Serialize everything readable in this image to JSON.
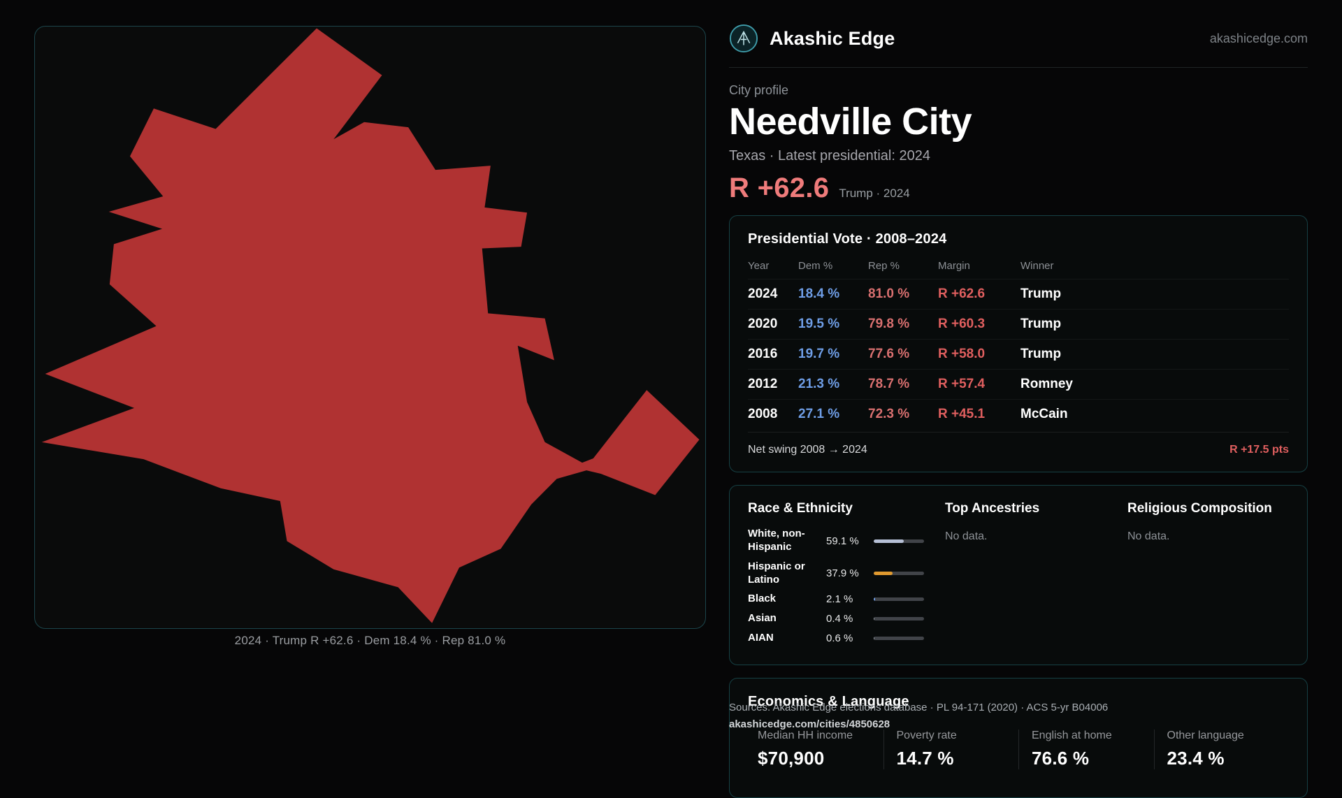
{
  "brand": {
    "name": "Akashic Edge",
    "domain": "akashicedge.com"
  },
  "map": {
    "caption": "2024 · Trump R +62.6 · Dem 18.4 % · Rep 81.0 %"
  },
  "profile": {
    "kicker": "City profile",
    "title": "Needville City",
    "subtitle": "Texas · Latest presidential: 2024",
    "margin_value": "R +62.6",
    "margin_label": "Trump · 2024"
  },
  "vote_table": {
    "title": "Presidential Vote · 2008–2024",
    "columns": [
      "Year",
      "Dem %",
      "Rep %",
      "Margin",
      "Winner"
    ],
    "rows": [
      {
        "year": "2024",
        "dem": "18.4 %",
        "rep": "81.0 %",
        "margin": "R +62.6",
        "winner": "Trump"
      },
      {
        "year": "2020",
        "dem": "19.5 %",
        "rep": "79.8 %",
        "margin": "R +60.3",
        "winner": "Trump"
      },
      {
        "year": "2016",
        "dem": "19.7 %",
        "rep": "77.6 %",
        "margin": "R +58.0",
        "winner": "Trump"
      },
      {
        "year": "2012",
        "dem": "21.3 %",
        "rep": "78.7 %",
        "margin": "R +57.4",
        "winner": "Romney"
      },
      {
        "year": "2008",
        "dem": "27.1 %",
        "rep": "72.3 %",
        "margin": "R +45.1",
        "winner": "McCain"
      }
    ],
    "net_swing_label": "Net swing 2008 → 2024",
    "net_swing_value": "R +17.5 pts"
  },
  "demographics": {
    "race": {
      "title": "Race & Ethnicity",
      "rows": [
        {
          "label": "White, non-Hispanic",
          "value": "59.1 %",
          "pct": 59.1,
          "color": "#b6c0d6"
        },
        {
          "label": "Hispanic or Latino",
          "value": "37.9 %",
          "pct": 37.9,
          "color": "#e09a2f"
        },
        {
          "label": "Black",
          "value": "2.1 %",
          "pct": 2.1,
          "color": "#6f9ee6"
        },
        {
          "label": "Asian",
          "value": "0.4 %",
          "pct": 0.4,
          "color": "#9aa0a8"
        },
        {
          "label": "AIAN",
          "value": "0.6 %",
          "pct": 0.6,
          "color": "#9aa0a8"
        }
      ]
    },
    "ancestries": {
      "title": "Top Ancestries",
      "empty": "No data."
    },
    "religion": {
      "title": "Religious Composition",
      "empty": "No data."
    }
  },
  "economics": {
    "title": "Economics & Language",
    "stats": [
      {
        "label": "Median HH income",
        "value": "$70,900"
      },
      {
        "label": "Poverty rate",
        "value": "14.7 %"
      },
      {
        "label": "English at home",
        "value": "76.6 %"
      },
      {
        "label": "Other language",
        "value": "23.4 %"
      }
    ]
  },
  "footer": {
    "sources": "Sources: Akashic Edge elections database · PL 94-171 (2020) · ACS 5-yr B04006",
    "permalink": "akashicedge.com/cities/4850628"
  },
  "colors": {
    "accent_margin": "#ef7b7b",
    "dem_blue": "#6f9ee6",
    "rep_red": "#d97070",
    "map_fill": "#b03232",
    "bar_orange": "#e09a2f",
    "bar_white": "#b6c0d6",
    "card_border": "#164044"
  }
}
